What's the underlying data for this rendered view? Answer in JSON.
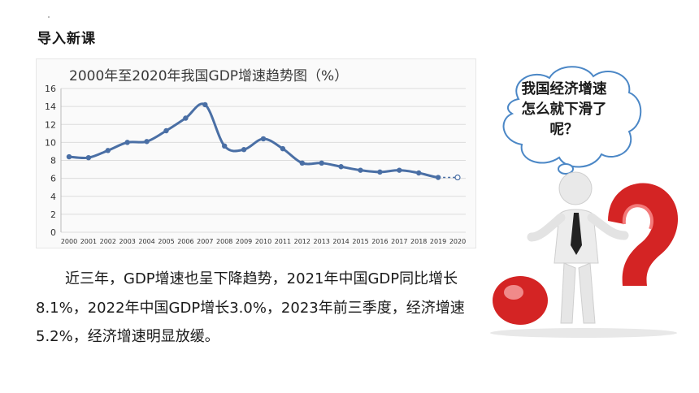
{
  "header": {
    "title": "导入新课"
  },
  "chart_data": {
    "type": "line",
    "title": "2000年至2020年我国GDP增速趋势图（%）",
    "categories": [
      "2000",
      "2001",
      "2002",
      "2003",
      "2004",
      "2005",
      "2006",
      "2007",
      "2008",
      "2009",
      "2010",
      "2011",
      "2012",
      "2013",
      "2014",
      "2015",
      "2016",
      "2017",
      "2018",
      "2019",
      "2020"
    ],
    "values": [
      8.4,
      8.3,
      9.1,
      10.0,
      10.1,
      11.3,
      12.7,
      14.2,
      9.6,
      9.2,
      10.4,
      9.3,
      7.7,
      7.7,
      7.3,
      6.9,
      6.7,
      6.9,
      6.6,
      6.1,
      6.1
    ],
    "y_ticks": [
      0,
      2,
      4,
      6,
      8,
      10,
      12,
      14,
      16
    ],
    "ylim": [
      0,
      16
    ],
    "grid": true,
    "line_color": "#4a6fa5"
  },
  "paragraph": "近三年，GDP增速也呈下降趋势，2021年中国GDP同比增长8.1%，2022年中国GDP增长3.0%，2023年前三季度，经济增速5.2%，经济增速明显放缓。",
  "bubble": {
    "text": "我国经济增速怎么就下滑了呢？"
  }
}
